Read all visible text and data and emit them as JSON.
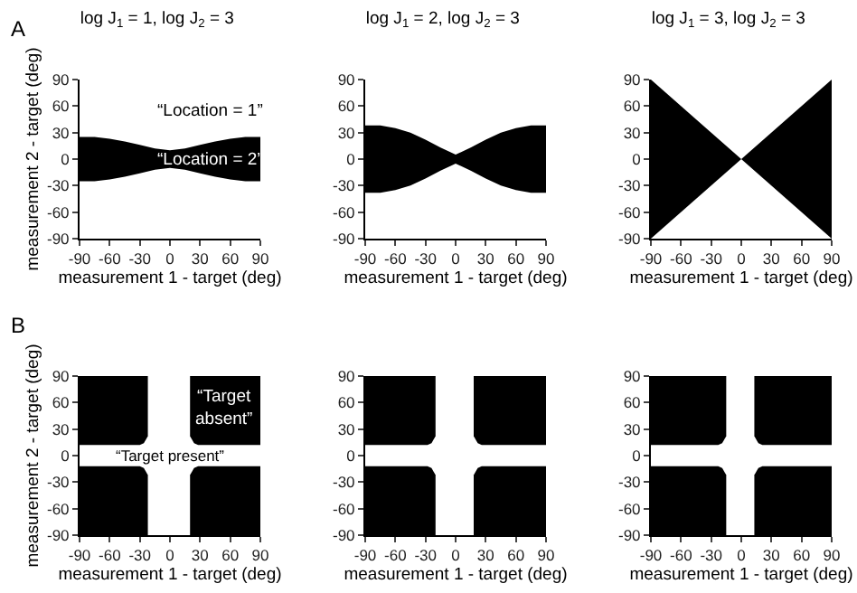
{
  "chart_data": [
    {
      "type": "line",
      "title": "log J$_{1}$ = 1, log J$_{2}$ = 3",
      "xlabel": "measurement 1 - target (deg)",
      "ylabel": "measurement 2 - target (deg)",
      "xlim": [
        -90,
        90
      ],
      "ylim": [
        -90,
        90
      ],
      "xticks": [
        -90,
        -60,
        -30,
        0,
        30,
        60,
        90
      ],
      "yticks": [
        -90,
        -60,
        -30,
        0,
        30,
        60,
        90
      ],
      "annotations": [
        "A",
        "“Location = 1”",
        "“Location = 2”"
      ],
      "series": [
        {
          "color": "#000000",
          "x": [
            -90,
            -75,
            -60,
            -45,
            -30,
            -15,
            0,
            15,
            30,
            45,
            60,
            75,
            90
          ],
          "values": [
            null,
            null,
            null,
            null,
            null,
            null,
            null,
            null,
            null,
            null,
            null,
            null,
            null
          ],
          "upper": [
            25,
            25,
            23,
            20,
            16,
            12,
            10,
            12,
            16,
            20,
            23,
            25,
            25
          ],
          "lower": [
            -25,
            -25,
            -23,
            -20,
            -16,
            -12,
            -10,
            -12,
            -16,
            -20,
            -23,
            -25,
            -25
          ]
        }
      ]
    },
    {
      "type": "line",
      "title": "log J$_{1}$ = 2, log J$_{2}$ = 3",
      "xlabel": "measurement 1 - target (deg)",
      "xlim": [
        -90,
        90
      ],
      "ylim": [
        -90,
        90
      ],
      "xticks": [
        -90,
        -60,
        -30,
        0,
        30,
        60,
        90
      ],
      "yticks": [
        -90,
        -60,
        -30,
        0,
        30,
        60,
        90
      ],
      "series": [
        {
          "color": "#000000",
          "x": [
            -90,
            -75,
            -60,
            -45,
            -30,
            -15,
            0,
            15,
            30,
            45,
            60,
            75,
            90
          ],
          "values": [
            null,
            null,
            null,
            null,
            null,
            null,
            null,
            null,
            null,
            null,
            null,
            null,
            null
          ],
          "upper": [
            38,
            38,
            35,
            30,
            22,
            13,
            5,
            13,
            22,
            30,
            35,
            38,
            38
          ],
          "lower": [
            -38,
            -38,
            -35,
            -30,
            -22,
            -13,
            -5,
            -13,
            -22,
            -30,
            -35,
            -38,
            -38
          ]
        }
      ]
    },
    {
      "type": "line",
      "title": "log J$_{1}$ = 3, log J$_{2}$ = 3",
      "xlabel": "measurement 1 - target (deg)",
      "xlim": [
        -90,
        90
      ],
      "ylim": [
        -90,
        90
      ],
      "xticks": [
        -90,
        -60,
        -30,
        0,
        30,
        60,
        90
      ],
      "yticks": [
        -90,
        -60,
        -30,
        0,
        30,
        60,
        90
      ],
      "series": [
        {
          "color": "#000000",
          "x": [
            -90,
            0,
            90
          ],
          "values": [
            null,
            null,
            null
          ],
          "upper": [
            90,
            0,
            90
          ],
          "lower": [
            -90,
            0,
            -90
          ]
        }
      ]
    },
    {
      "type": "line",
      "xlabel": "measurement 1 - target (deg)",
      "ylabel": "measurement 2 - target (deg)",
      "xlim": [
        -90,
        90
      ],
      "ylim": [
        -90,
        90
      ],
      "xticks": [
        -90,
        -60,
        -30,
        0,
        30,
        60,
        90
      ],
      "yticks": [
        -90,
        -60,
        -30,
        0,
        30,
        60,
        90
      ],
      "annotations": [
        "B",
        "“Target\nabsent”",
        "“Target present”"
      ],
      "series": [
        {
          "color": "#000000",
          "x": [
            -90,
            -30,
            -26,
            -22
          ],
          "values": [
            null,
            null,
            null,
            null
          ],
          "upper": [
            90,
            90,
            90,
            90
          ],
          "lower": [
            12,
            12,
            14,
            22
          ]
        },
        {
          "color": "#000000",
          "x": [
            20,
            24,
            28,
            90
          ],
          "values": [
            null,
            null,
            null,
            null
          ],
          "upper": [
            90,
            90,
            90,
            90
          ],
          "lower": [
            22,
            14,
            12,
            12
          ]
        },
        {
          "color": "#000000",
          "x": [
            -90,
            -30,
            -26,
            -22
          ],
          "values": [
            null,
            null,
            null,
            null
          ],
          "upper": [
            -12,
            -12,
            -14,
            -22
          ],
          "lower": [
            -90,
            -90,
            -90,
            -90
          ]
        },
        {
          "color": "#000000",
          "x": [
            20,
            24,
            28,
            90
          ],
          "values": [
            null,
            null,
            null,
            null
          ],
          "upper": [
            -22,
            -14,
            -12,
            -12
          ],
          "lower": [
            -90,
            -90,
            -90,
            -90
          ]
        }
      ]
    },
    {
      "type": "line",
      "xlabel": "measurement 1 - target (deg)",
      "xlim": [
        -90,
        90
      ],
      "ylim": [
        -90,
        90
      ],
      "xticks": [
        -90,
        -60,
        -30,
        0,
        30,
        60,
        90
      ],
      "yticks": [
        -90,
        -60,
        -30,
        0,
        30,
        60,
        90
      ],
      "series": [
        {
          "color": "#000000",
          "x": [
            -90,
            -28,
            -24,
            -20
          ],
          "values": [
            null,
            null,
            null,
            null
          ],
          "upper": [
            90,
            90,
            90,
            90
          ],
          "lower": [
            12,
            12,
            14,
            22
          ]
        },
        {
          "color": "#000000",
          "x": [
            18,
            22,
            26,
            90
          ],
          "values": [
            null,
            null,
            null,
            null
          ],
          "upper": [
            90,
            90,
            90,
            90
          ],
          "lower": [
            22,
            14,
            12,
            12
          ]
        },
        {
          "color": "#000000",
          "x": [
            -90,
            -28,
            -24,
            -20
          ],
          "values": [
            null,
            null,
            null,
            null
          ],
          "upper": [
            -12,
            -12,
            -14,
            -22
          ],
          "lower": [
            -90,
            -90,
            -90,
            -90
          ]
        },
        {
          "color": "#000000",
          "x": [
            18,
            22,
            26,
            90
          ],
          "values": [
            null,
            null,
            null,
            null
          ],
          "upper": [
            -22,
            -14,
            -12,
            -12
          ],
          "lower": [
            -90,
            -90,
            -90,
            -90
          ]
        }
      ]
    },
    {
      "type": "line",
      "xlabel": "measurement 1 - target (deg)",
      "xlim": [
        -90,
        90
      ],
      "ylim": [
        -90,
        90
      ],
      "xticks": [
        -90,
        -60,
        -30,
        0,
        30,
        60,
        90
      ],
      "yticks": [
        -90,
        -60,
        -30,
        0,
        30,
        60,
        90
      ],
      "series": [
        {
          "color": "#000000",
          "x": [
            -90,
            -23,
            -19,
            -15
          ],
          "values": [
            null,
            null,
            null,
            null
          ],
          "upper": [
            90,
            90,
            90,
            90
          ],
          "lower": [
            12,
            12,
            14,
            22
          ]
        },
        {
          "color": "#000000",
          "x": [
            13,
            17,
            21,
            90
          ],
          "values": [
            null,
            null,
            null,
            null
          ],
          "upper": [
            90,
            90,
            90,
            90
          ],
          "lower": [
            22,
            14,
            12,
            12
          ]
        },
        {
          "color": "#000000",
          "x": [
            -90,
            -23,
            -19,
            -15
          ],
          "values": [
            null,
            null,
            null,
            null
          ],
          "upper": [
            -12,
            -12,
            -14,
            -22
          ],
          "lower": [
            -90,
            -90,
            -90,
            -90
          ]
        },
        {
          "color": "#000000",
          "x": [
            13,
            17,
            21,
            90
          ],
          "values": [
            null,
            null,
            null,
            null
          ],
          "upper": [
            -22,
            -14,
            -12,
            -12
          ],
          "lower": [
            -90,
            -90,
            -90,
            -90
          ]
        }
      ]
    }
  ]
}
